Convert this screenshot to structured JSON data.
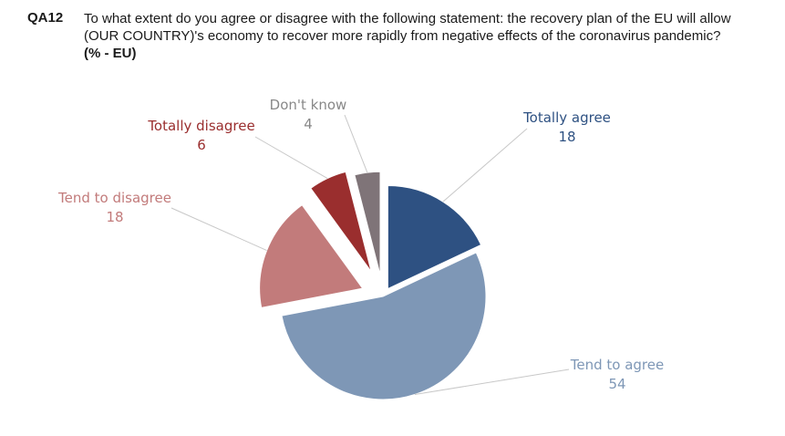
{
  "question": {
    "code": "QA12",
    "text": "To what extent do you agree or disagree with the following statement: the recovery plan of the EU will allow (OUR COUNTRY)'s economy to recover more rapidly from negative effects of the coronavirus pandemic?",
    "unit": "(% - EU)"
  },
  "chart_data": {
    "type": "pie",
    "slices": [
      {
        "label": "Totally agree",
        "value": 18,
        "color": "#2e5182",
        "label_color": "#2e5182"
      },
      {
        "label": "Tend to agree",
        "value": 54,
        "color": "#7e97b6",
        "label_color": "#7e97b6"
      },
      {
        "label": "Tend to disagree",
        "value": 18,
        "color": "#c27b7b",
        "label_color": "#c27b7b"
      },
      {
        "label": "Totally disagree",
        "value": 6,
        "color": "#9a2e2e",
        "label_color": "#9a2e2e"
      },
      {
        "label": "Don't know",
        "value": 4,
        "color": "#7f7478",
        "label_color": "#888888"
      }
    ],
    "start_angle_deg": 0,
    "direction": "clockwise",
    "exploded": true
  }
}
